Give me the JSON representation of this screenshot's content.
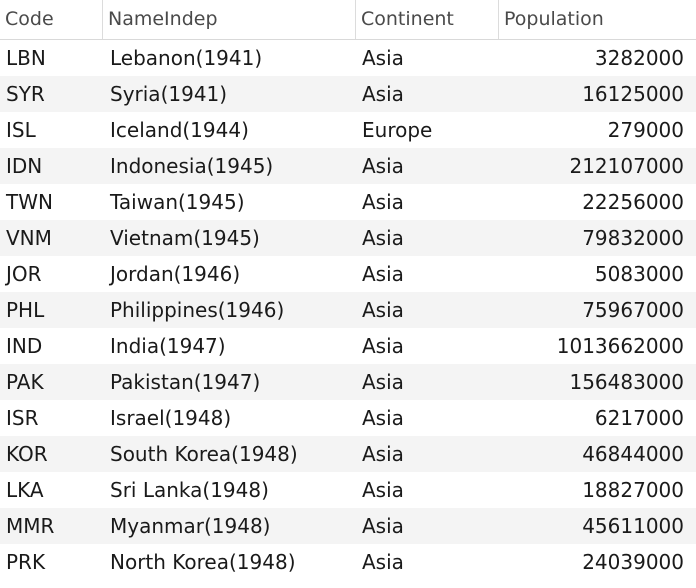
{
  "table": {
    "columns": [
      "Code",
      "NameIndep",
      "Continent",
      "Population"
    ],
    "rows": [
      {
        "code": "LBN",
        "name": "Lebanon(1941)",
        "continent": "Asia",
        "population": "3282000"
      },
      {
        "code": "SYR",
        "name": "Syria(1941)",
        "continent": "Asia",
        "population": "16125000"
      },
      {
        "code": "ISL",
        "name": "Iceland(1944)",
        "continent": "Europe",
        "population": "279000"
      },
      {
        "code": "IDN",
        "name": "Indonesia(1945)",
        "continent": "Asia",
        "population": "212107000"
      },
      {
        "code": "TWN",
        "name": "Taiwan(1945)",
        "continent": "Asia",
        "population": "22256000"
      },
      {
        "code": "VNM",
        "name": "Vietnam(1945)",
        "continent": "Asia",
        "population": "79832000"
      },
      {
        "code": "JOR",
        "name": "Jordan(1946)",
        "continent": "Asia",
        "population": "5083000"
      },
      {
        "code": "PHL",
        "name": "Philippines(1946)",
        "continent": "Asia",
        "population": "75967000"
      },
      {
        "code": "IND",
        "name": "India(1947)",
        "continent": "Asia",
        "population": "1013662000"
      },
      {
        "code": "PAK",
        "name": "Pakistan(1947)",
        "continent": "Asia",
        "population": "156483000"
      },
      {
        "code": "ISR",
        "name": "Israel(1948)",
        "continent": "Asia",
        "population": "6217000"
      },
      {
        "code": "KOR",
        "name": "South Korea(1948)",
        "continent": "Asia",
        "population": "46844000"
      },
      {
        "code": "LKA",
        "name": "Sri Lanka(1948)",
        "continent": "Asia",
        "population": "18827000"
      },
      {
        "code": "MMR",
        "name": "Myanmar(1948)",
        "continent": "Asia",
        "population": "45611000"
      },
      {
        "code": "PRK",
        "name": "North Korea(1948)",
        "continent": "Asia",
        "population": "24039000"
      }
    ]
  }
}
